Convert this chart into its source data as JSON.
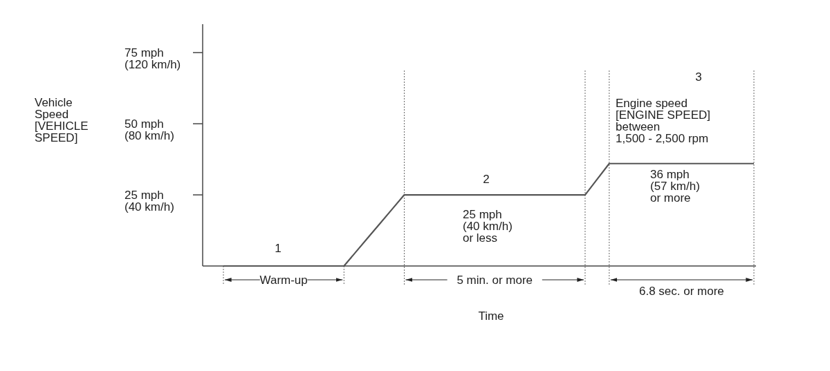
{
  "chart_data": {
    "type": "line",
    "xlabel": "Time",
    "ylabel": "Vehicle\nSpeed\n[VEHICLE\nSPEED]",
    "categories": [
      null,
      null,
      null,
      null,
      null,
      null,
      null,
      null,
      null,
      null,
      null,
      null,
      null,
      null,
      null,
      null,
      null,
      null,
      null,
      null,
      null,
      null,
      null,
      null,
      null,
      null,
      null,
      null,
      null,
      null,
      null,
      null,
      null,
      null,
      null,
      null,
      null,
      null,
      null,
      null,
      null,
      null,
      null,
      null,
      null
    ],
    "series": [
      {
        "color": "#555555",
        "values": [
          0,
          0,
          0,
          0,
          0,
          0,
          0,
          0,
          0,
          0,
          0,
          5,
          10,
          15,
          20,
          25,
          25,
          25,
          25,
          25,
          25,
          25,
          25,
          25,
          25,
          25,
          25,
          25,
          25,
          25,
          25,
          30.5,
          36,
          36,
          36,
          36,
          36,
          36,
          36,
          36,
          36,
          36,
          36,
          36,
          36
        ]
      }
    ],
    "ylim": [
      0,
      85
    ],
    "yticks": [
      {
        "value": 25,
        "label": "25 mph"
      },
      {
        "value": 50,
        "label": "50 mph"
      },
      {
        "value": 75,
        "label": "75 mph"
      }
    ],
    "y2lim": [
      0,
      136
    ],
    "y2ticks": [
      {
        "value": 40,
        "label": "(40 km/h)"
      },
      {
        "value": 80,
        "label": "(80 km/h)"
      },
      {
        "value": 120,
        "label": "(120 km/h)"
      }
    ],
    "tick_labels": "y",
    "grid": "x",
    "marker": "none",
    "line_style": "solid",
    "annotations": [
      "1",
      "2",
      "3",
      "25 mph\n(40 km/h)\nor less",
      "Engine speed\n[ENGINE SPEED]\nbetween\n1,500 - 2,500 rpm",
      "36 mph\n(57 km/h)\nor more",
      "Warm-up",
      "5 min. or more",
      "6.8 sec. or more"
    ]
  }
}
